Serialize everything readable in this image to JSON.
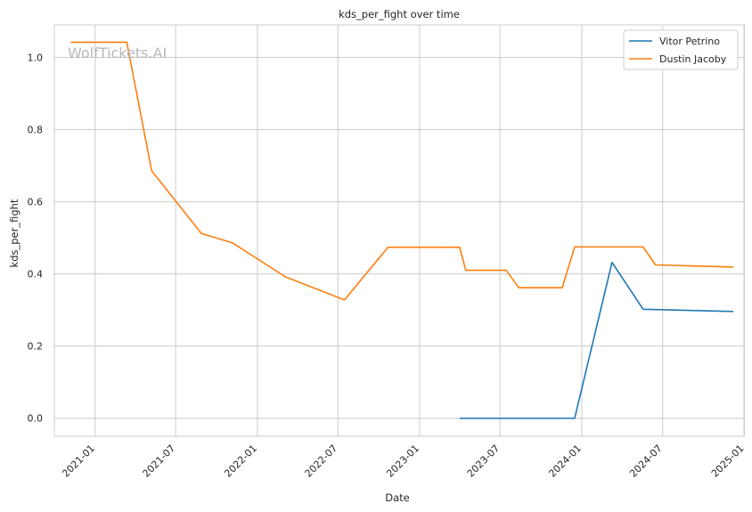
{
  "chart_data": {
    "type": "line",
    "title": "kds_per_fight over time",
    "xlabel": "Date",
    "ylabel": "kds_per_fight",
    "watermark": "WolfTickets.AI",
    "xlim": [
      "2020-10-01",
      "2024-12-31"
    ],
    "ylim": [
      -0.05,
      1.09
    ],
    "x_ticks": [
      "2021-01-01",
      "2021-07-01",
      "2022-01-01",
      "2022-07-01",
      "2023-01-01",
      "2023-07-01",
      "2024-01-01",
      "2024-07-01",
      "2025-01-01"
    ],
    "x_tick_labels": [
      "2021-01",
      "2021-07",
      "2022-01",
      "2022-07",
      "2023-01",
      "2023-07",
      "2024-01",
      "2024-07",
      "2025-01"
    ],
    "y_ticks": [
      0.0,
      0.2,
      0.4,
      0.6,
      0.8,
      1.0
    ],
    "y_tick_labels": [
      "0.0",
      "0.2",
      "0.4",
      "0.6",
      "0.8",
      "1.0"
    ],
    "grid": true,
    "legend_position": "top-right",
    "series": [
      {
        "name": "Vitor Petrino",
        "color": "#1f77b4",
        "points": [
          {
            "x": "2023-04-01",
            "y": 0.0
          },
          {
            "x": "2023-12-16",
            "y": 0.0
          },
          {
            "x": "2024-03-09",
            "y": 0.432
          },
          {
            "x": "2024-05-18",
            "y": 0.302
          },
          {
            "x": "2024-12-07",
            "y": 0.296
          }
        ]
      },
      {
        "name": "Dustin Jacoby",
        "color": "#ff7f0e",
        "points": [
          {
            "x": "2020-11-07",
            "y": 1.042
          },
          {
            "x": "2021-03-13",
            "y": 1.042
          },
          {
            "x": "2021-05-08",
            "y": 0.686
          },
          {
            "x": "2021-08-28",
            "y": 0.512
          },
          {
            "x": "2021-11-06",
            "y": 0.486
          },
          {
            "x": "2022-03-05",
            "y": 0.392
          },
          {
            "x": "2022-07-16",
            "y": 0.328
          },
          {
            "x": "2022-10-22",
            "y": 0.474
          },
          {
            "x": "2023-04-01",
            "y": 0.474
          },
          {
            "x": "2023-04-15",
            "y": 0.41
          },
          {
            "x": "2023-07-15",
            "y": 0.41
          },
          {
            "x": "2023-08-12",
            "y": 0.362
          },
          {
            "x": "2023-11-18",
            "y": 0.362
          },
          {
            "x": "2023-12-16",
            "y": 0.475
          },
          {
            "x": "2024-05-18",
            "y": 0.475
          },
          {
            "x": "2024-06-15",
            "y": 0.425
          },
          {
            "x": "2024-12-07",
            "y": 0.419
          }
        ]
      }
    ]
  }
}
